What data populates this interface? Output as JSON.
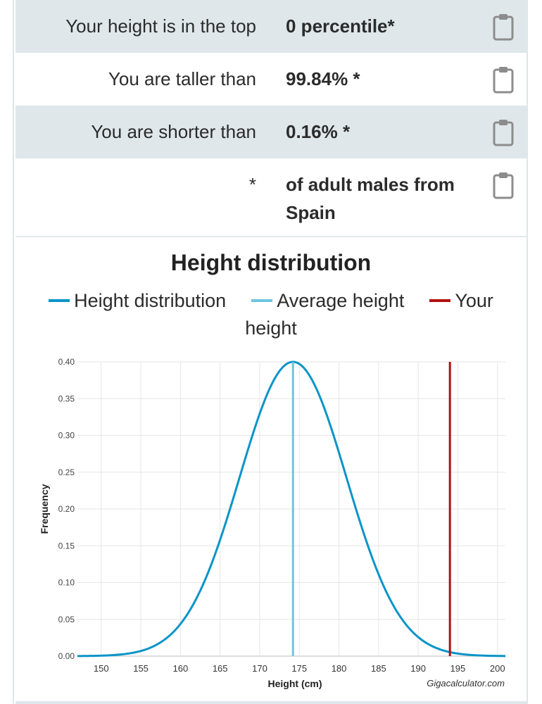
{
  "results": [
    {
      "label": "Your height is in the top",
      "value": "0 percentile*",
      "shaded": true
    },
    {
      "label": "You are taller than",
      "value": "99.84% *",
      "shaded": false
    },
    {
      "label": "You are shorter than",
      "value": "0.16% *",
      "shaded": true
    },
    {
      "label": "*",
      "value": "of adult males from Spain",
      "shaded": false
    }
  ],
  "colors": {
    "distribution": "#0a94c8",
    "average": "#6ec6df",
    "your_height": "#b01111",
    "row_shade": "#dfe7eb"
  },
  "icons": {
    "copy": "clipboard-icon"
  },
  "chart_data": {
    "type": "line",
    "title": "Height distribution",
    "legend": {
      "placement": "top",
      "entries": [
        "Height distribution",
        "Average height",
        "Your height"
      ]
    },
    "xlabel": "Height (cm)",
    "ylabel": "Frequency",
    "xlim": [
      147,
      201
    ],
    "ylim": [
      0,
      0.4
    ],
    "x_ticks": [
      150,
      155,
      160,
      165,
      170,
      175,
      180,
      185,
      190,
      195,
      200
    ],
    "y_ticks": [
      "0.00",
      "0.05",
      "0.10",
      "0.15",
      "0.20",
      "0.25",
      "0.30",
      "0.35",
      "0.40"
    ],
    "grid": true,
    "series": [
      {
        "name": "Height distribution",
        "distribution": "normal",
        "mean": 174.2,
        "sd": 6.75,
        "peak": 0.4
      }
    ],
    "average_height": 174.2,
    "your_height": 194,
    "credit": "Gigacalculator.com"
  }
}
